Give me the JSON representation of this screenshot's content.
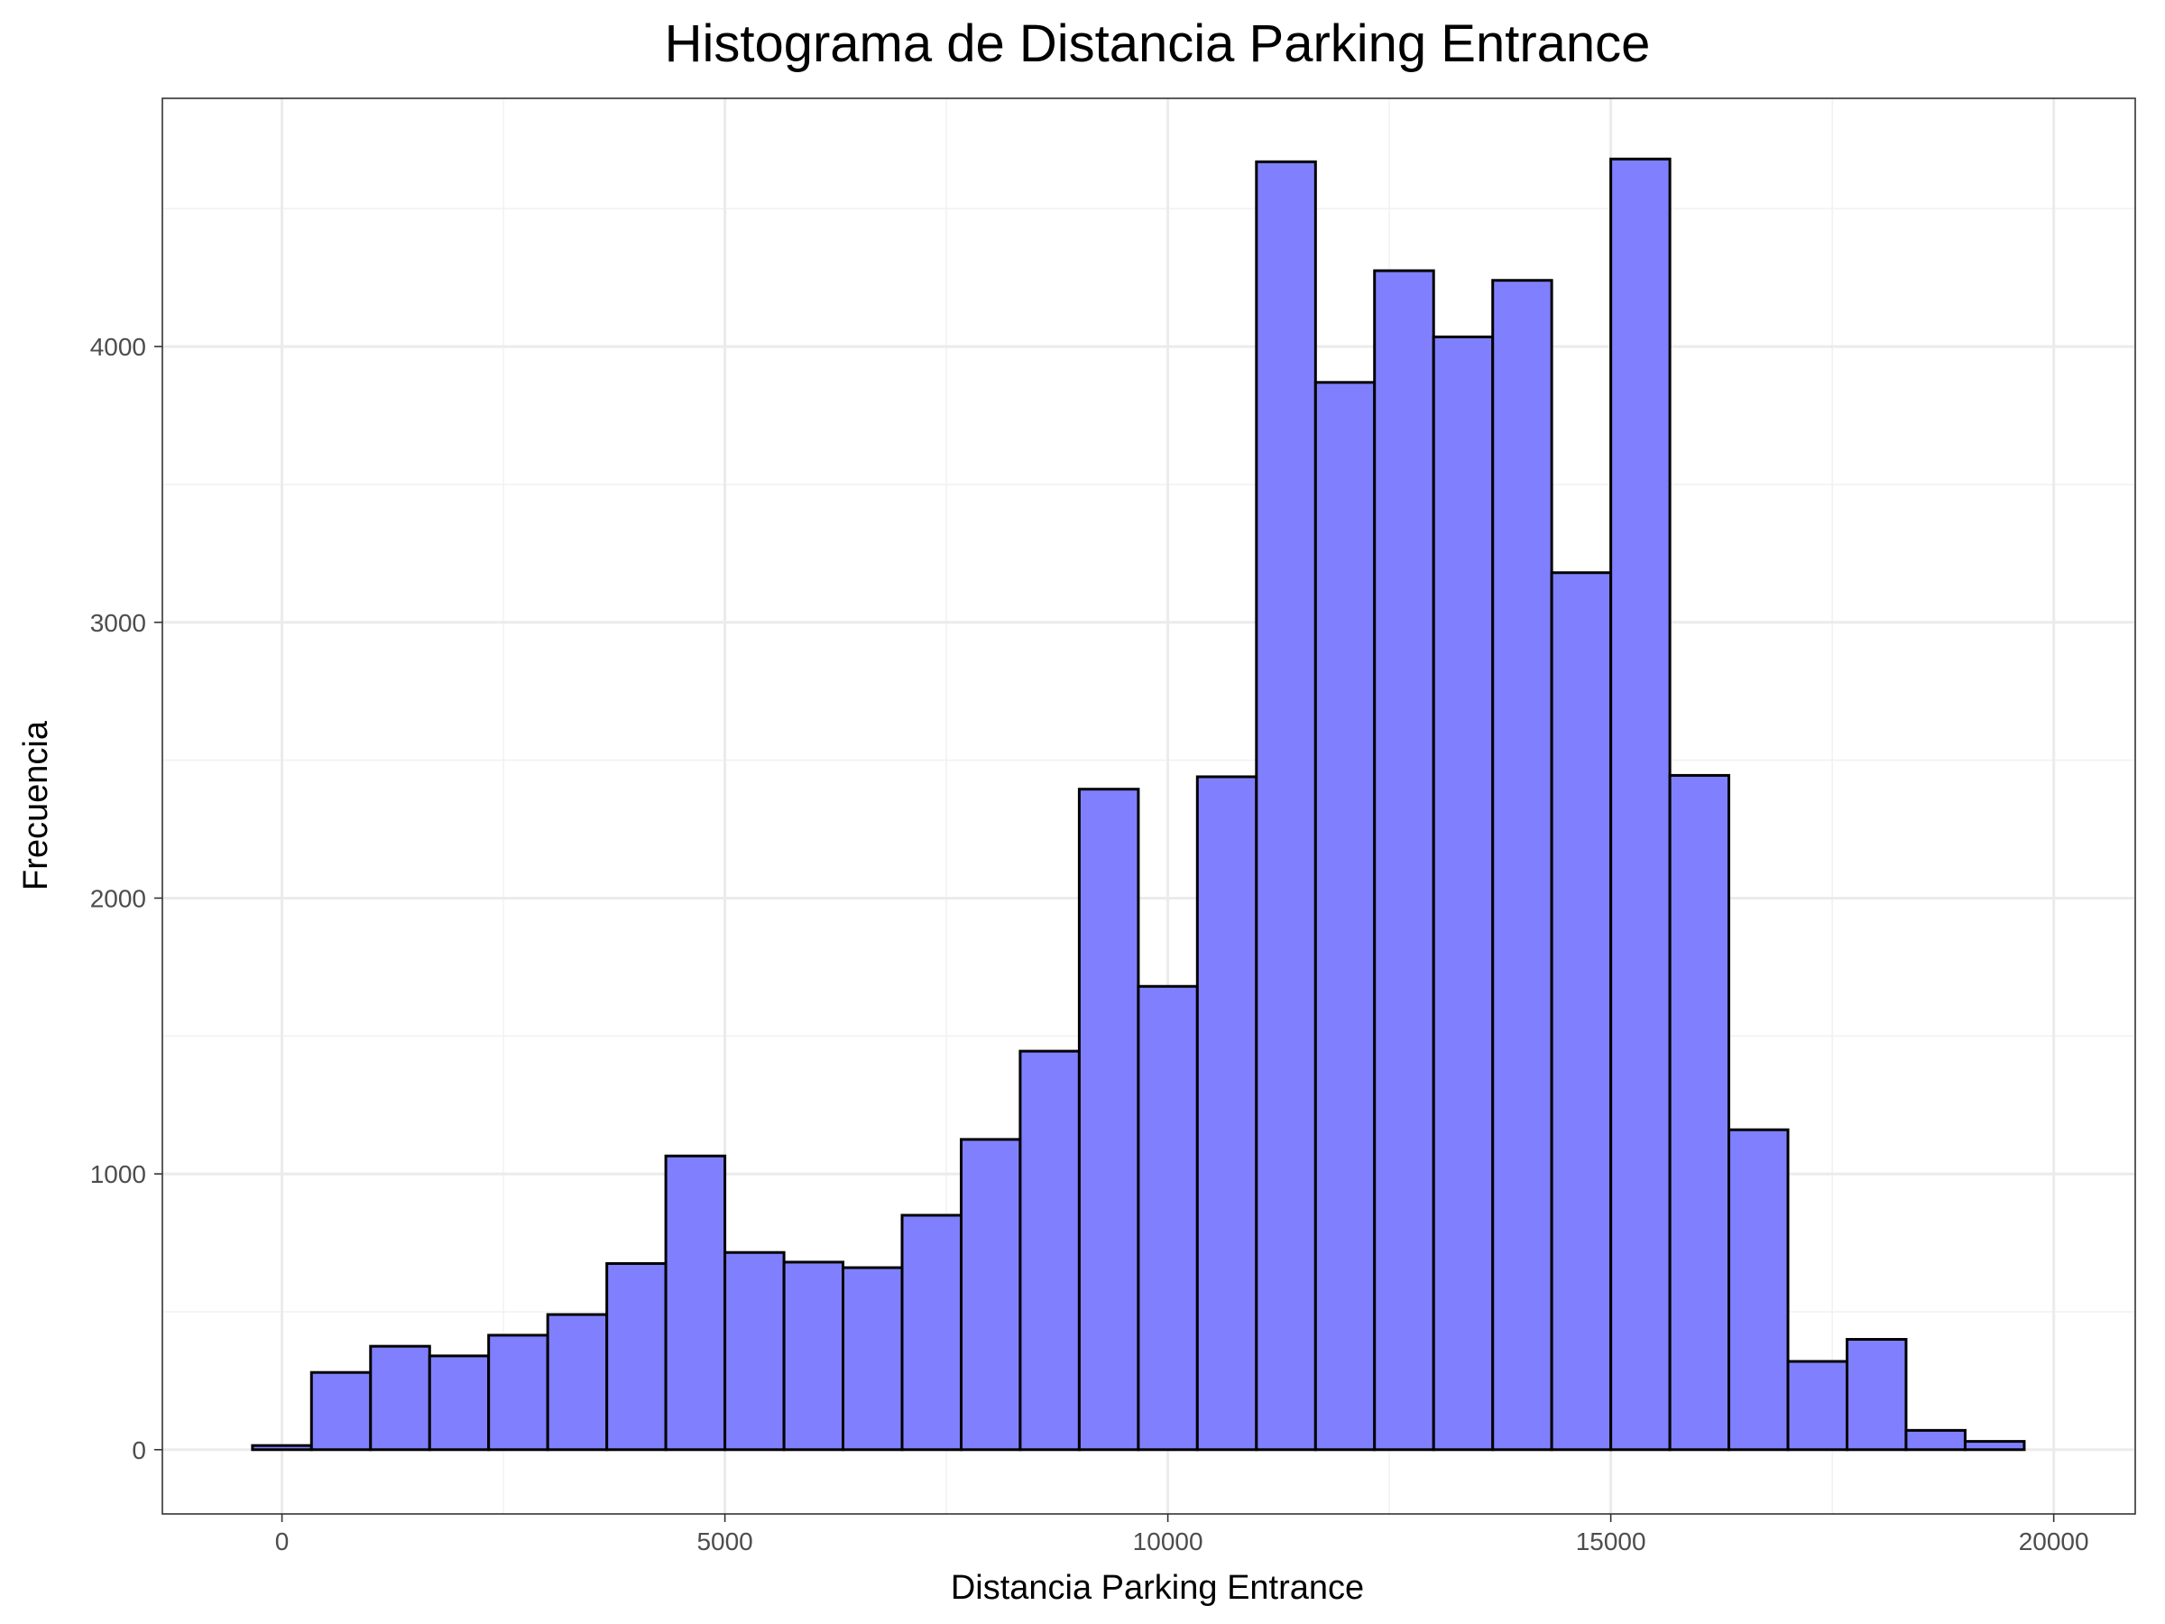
{
  "chart_data": {
    "type": "bar",
    "title": "Histograma de Distancia Parking Entrance",
    "xlabel": "Distancia Parking Entrance",
    "ylabel": "Frecuencia",
    "xlim": [
      -1350,
      20920
    ],
    "ylim": [
      -233,
      4900
    ],
    "x_ticks": [
      0,
      5000,
      10000,
      15000,
      20000
    ],
    "x_tick_labels": [
      "0",
      "5000",
      "10000",
      "15000",
      "20000"
    ],
    "y_ticks": [
      0,
      1000,
      2000,
      3000,
      4000
    ],
    "y_tick_labels": [
      "0",
      "1000",
      "2000",
      "3000",
      "4000"
    ],
    "grid": true,
    "bar_fill": "#8080ff",
    "bar_outline": "#000000",
    "bin_width": 667,
    "bins": [
      {
        "x0": -333,
        "x1": 333,
        "count": 15
      },
      {
        "x0": 333,
        "x1": 1000,
        "count": 280
      },
      {
        "x0": 1000,
        "x1": 1667,
        "count": 375
      },
      {
        "x0": 1667,
        "x1": 2333,
        "count": 340
      },
      {
        "x0": 2333,
        "x1": 3000,
        "count": 415
      },
      {
        "x0": 3000,
        "x1": 3667,
        "count": 490
      },
      {
        "x0": 3667,
        "x1": 4333,
        "count": 675
      },
      {
        "x0": 4333,
        "x1": 5000,
        "count": 1065
      },
      {
        "x0": 5000,
        "x1": 5667,
        "count": 715
      },
      {
        "x0": 5667,
        "x1": 6333,
        "count": 680
      },
      {
        "x0": 6333,
        "x1": 7000,
        "count": 660
      },
      {
        "x0": 7000,
        "x1": 7667,
        "count": 850
      },
      {
        "x0": 7667,
        "x1": 8333,
        "count": 1125
      },
      {
        "x0": 8333,
        "x1": 9000,
        "count": 1445
      },
      {
        "x0": 9000,
        "x1": 9667,
        "count": 2395
      },
      {
        "x0": 9667,
        "x1": 10333,
        "count": 1680
      },
      {
        "x0": 10333,
        "x1": 11000,
        "count": 2440
      },
      {
        "x0": 11000,
        "x1": 11667,
        "count": 4670
      },
      {
        "x0": 11667,
        "x1": 12333,
        "count": 3870
      },
      {
        "x0": 12333,
        "x1": 13000,
        "count": 4275
      },
      {
        "x0": 13000,
        "x1": 13667,
        "count": 4035
      },
      {
        "x0": 13667,
        "x1": 14333,
        "count": 4240
      },
      {
        "x0": 14333,
        "x1": 15000,
        "count": 3180
      },
      {
        "x0": 15000,
        "x1": 15667,
        "count": 4680
      },
      {
        "x0": 15667,
        "x1": 16333,
        "count": 2445
      },
      {
        "x0": 16333,
        "x1": 17000,
        "count": 1160
      },
      {
        "x0": 17000,
        "x1": 17667,
        "count": 320
      },
      {
        "x0": 17667,
        "x1": 18333,
        "count": 400
      },
      {
        "x0": 18333,
        "x1": 19000,
        "count": 70
      },
      {
        "x0": 19000,
        "x1": 19667,
        "count": 30
      }
    ]
  }
}
